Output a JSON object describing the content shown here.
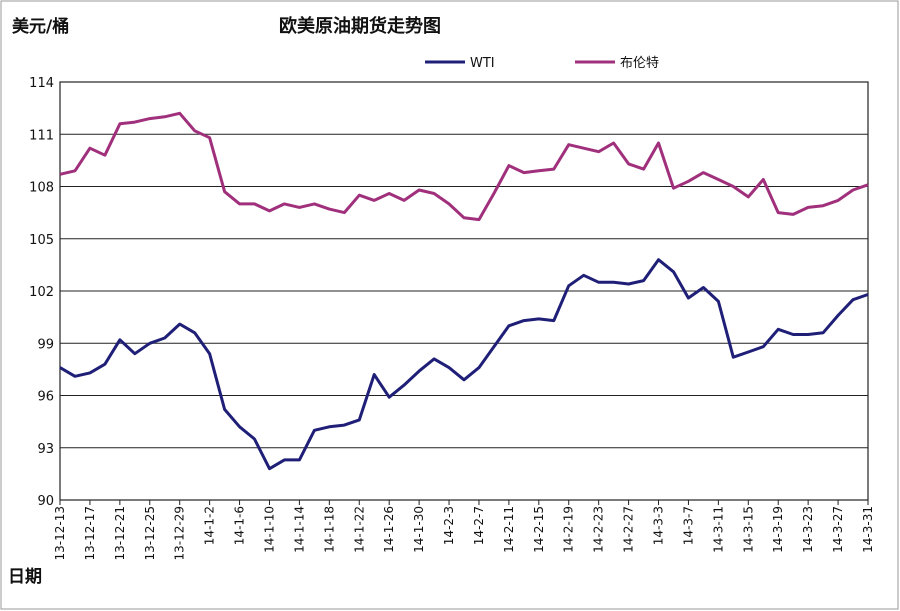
{
  "chart_data": {
    "type": "line",
    "title": "欧美原油期货走势图",
    "y_label": "美元/桶",
    "x_label": "日期",
    "categories": [
      "13-12-13",
      null,
      "13-12-17",
      null,
      "13-12-21",
      null,
      "13-12-25",
      null,
      "13-12-29",
      null,
      "14-1-2",
      null,
      "14-1-6",
      null,
      "14-1-10",
      null,
      "14-1-14",
      null,
      "14-1-18",
      null,
      "14-1-22",
      null,
      "14-1-26",
      null,
      "14-1-30",
      null,
      "14-2-3",
      null,
      "14-2-7",
      null,
      "14-2-11",
      null,
      "14-2-15",
      null,
      "14-2-19",
      null,
      "14-2-23",
      null,
      "14-2-27",
      null,
      "14-3-3",
      null,
      "14-3-7",
      null,
      "14-3-11",
      null,
      "14-3-15",
      null,
      "14-3-19",
      null,
      "14-3-23",
      null,
      "14-3-27",
      null,
      "14-3-31"
    ],
    "series": [
      {
        "name": "WTI",
        "color": "#1f1f78",
        "values": [
          97.6,
          97.1,
          97.3,
          97.8,
          99.2,
          98.4,
          99.0,
          99.3,
          100.1,
          99.6,
          98.4,
          95.2,
          94.2,
          93.5,
          91.8,
          92.3,
          92.3,
          94.0,
          94.2,
          94.3,
          94.6,
          97.2,
          95.9,
          96.6,
          97.4,
          98.1,
          97.6,
          96.9,
          97.6,
          98.8,
          100.0,
          100.3,
          100.4,
          100.3,
          102.3,
          102.9,
          102.5,
          102.5,
          102.4,
          102.6,
          103.8,
          103.1,
          101.6,
          102.2,
          101.4,
          98.2,
          98.5,
          98.8,
          99.8,
          99.5,
          99.5,
          99.6,
          100.6,
          101.5,
          101.8
        ]
      },
      {
        "name": "布伦特",
        "color": "#a0307c",
        "values": [
          108.7,
          108.9,
          110.2,
          109.8,
          111.6,
          111.7,
          111.9,
          112.0,
          112.2,
          111.2,
          110.8,
          107.7,
          107.0,
          107.0,
          106.6,
          107.0,
          106.8,
          107.0,
          106.7,
          106.5,
          107.5,
          107.2,
          107.6,
          107.2,
          107.8,
          107.6,
          107.0,
          106.2,
          106.1,
          107.6,
          109.2,
          108.8,
          108.9,
          109.0,
          110.4,
          110.2,
          110.0,
          110.5,
          109.3,
          109.0,
          110.5,
          107.9,
          108.3,
          108.8,
          108.4,
          108.0,
          107.4,
          108.4,
          106.5,
          106.4,
          106.8,
          106.9,
          107.2,
          107.8,
          108.1
        ]
      }
    ],
    "ylim": [
      90,
      114
    ],
    "yticks": [
      90,
      93,
      96,
      99,
      102,
      105,
      108,
      111,
      114
    ],
    "grid": true
  }
}
